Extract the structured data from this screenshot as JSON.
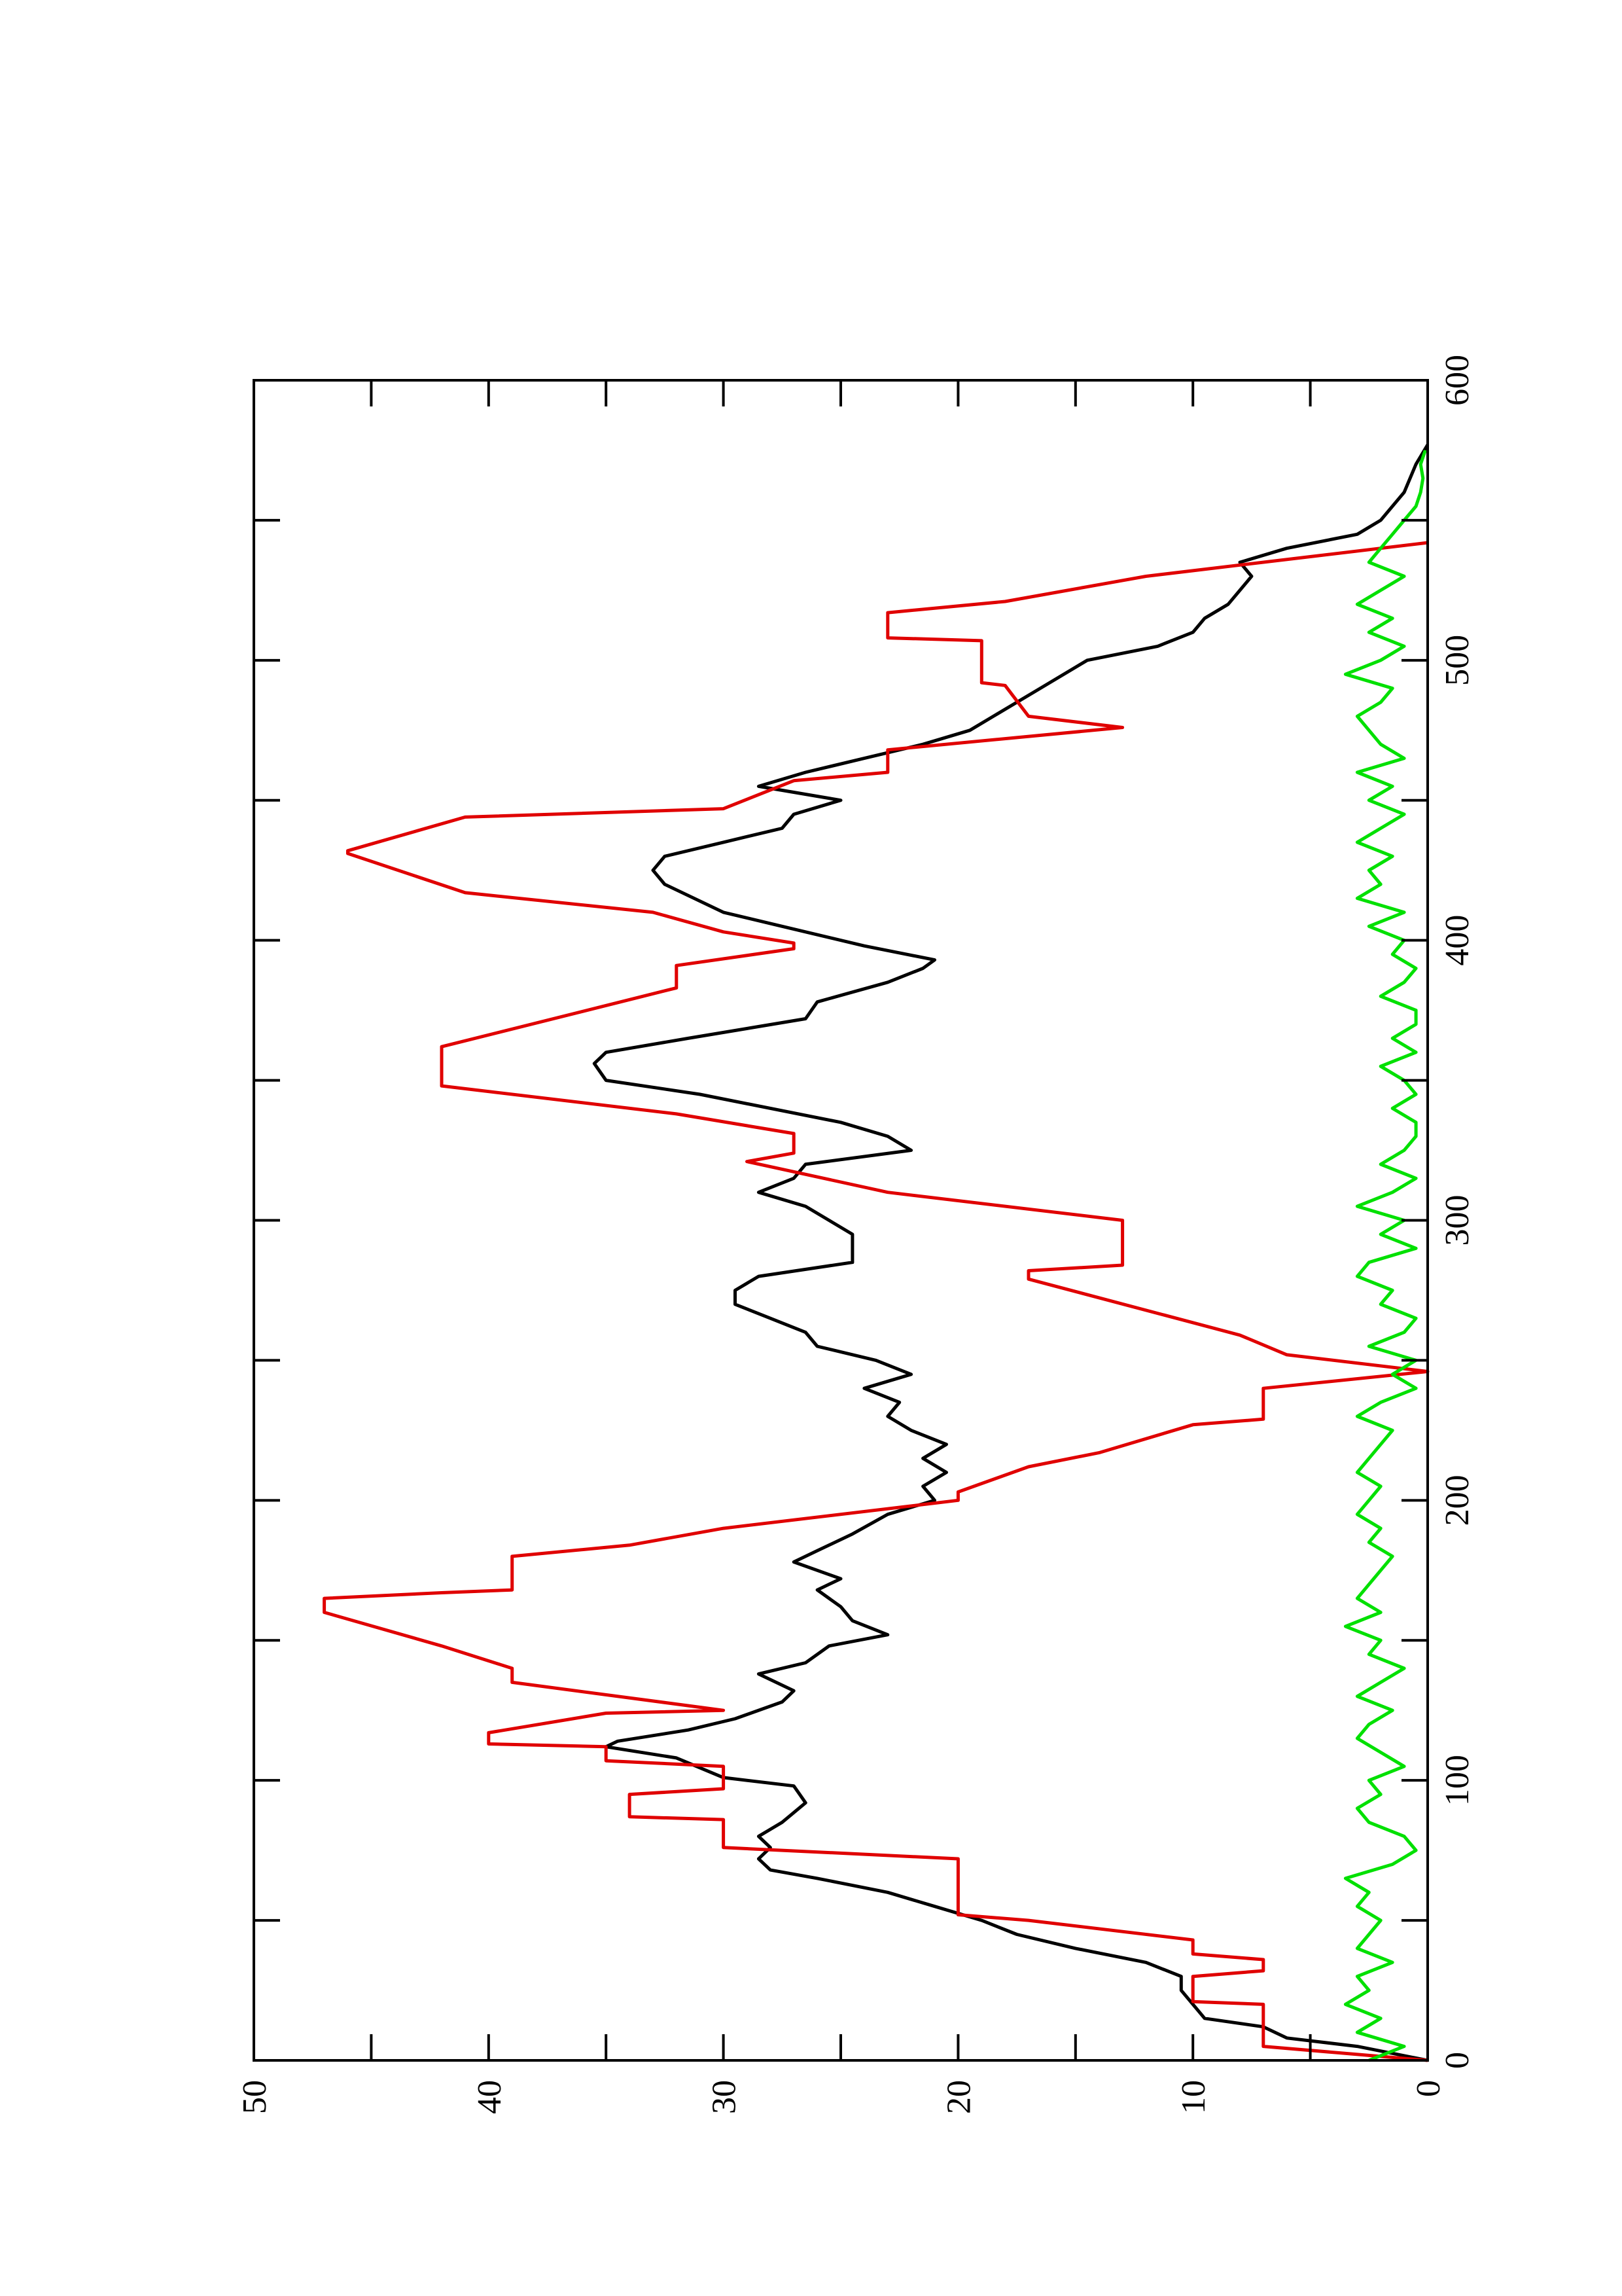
{
  "chart_data": {
    "type": "line",
    "xlim": [
      0,
      600
    ],
    "xticks": [
      0,
      100,
      200,
      300,
      400,
      500,
      600
    ],
    "xminorticks": [
      50,
      150,
      250,
      350,
      450,
      550
    ],
    "ylim": [
      0,
      50
    ],
    "yticks": [
      0,
      10,
      20,
      30,
      40,
      50
    ],
    "yminorticks": [
      5,
      15,
      25,
      35,
      45
    ],
    "series": [
      {
        "color": "#000000",
        "x": [
          0,
          5,
          8,
          12,
          15,
          20,
          25,
          30,
          35,
          40,
          45,
          50,
          55,
          60,
          65,
          68,
          72,
          76,
          80,
          85,
          92,
          98,
          101,
          108,
          112,
          114,
          118,
          122,
          128,
          132,
          138,
          142,
          148,
          152,
          157,
          162,
          168,
          172,
          178,
          182,
          188,
          195,
          200,
          205,
          210,
          215,
          220,
          225,
          230,
          235,
          240,
          245,
          250,
          255,
          260,
          265,
          270,
          275,
          280,
          285,
          290,
          295,
          300,
          305,
          310,
          315,
          320,
          325,
          330,
          335,
          345,
          350,
          356,
          360,
          365,
          372,
          378,
          385,
          390,
          393,
          398,
          405,
          410,
          420,
          425,
          430,
          435,
          440,
          445,
          450,
          455,
          460,
          465,
          470,
          475,
          480,
          490,
          500,
          505,
          510,
          515,
          520,
          525,
          530,
          535,
          540,
          545,
          550,
          560,
          570,
          577
        ],
        "values": [
          0,
          3,
          6,
          7,
          9.5,
          10,
          10.5,
          10.5,
          12,
          15,
          17.5,
          19,
          21,
          23,
          26,
          28,
          28.5,
          28,
          28.5,
          27.5,
          26.5,
          27,
          30,
          32,
          35,
          34.5,
          31.5,
          29.5,
          27.5,
          27,
          28.5,
          26.5,
          25.5,
          23,
          24.5,
          25,
          26,
          25,
          27,
          26,
          24.5,
          23,
          21,
          21.5,
          20.5,
          21.5,
          20.5,
          22,
          23,
          22.5,
          24,
          22,
          23.5,
          26,
          26.5,
          28,
          29.5,
          29.5,
          28.5,
          24.5,
          24.5,
          24.5,
          25.5,
          26.5,
          28.5,
          27,
          26.5,
          22,
          23,
          25,
          31,
          35,
          35.5,
          35,
          31.5,
          26.5,
          26,
          23,
          21.5,
          21,
          24,
          27.5,
          30,
          32.5,
          33,
          32.5,
          30,
          27.5,
          27,
          25,
          28.5,
          26.5,
          24,
          21.5,
          19.5,
          18.5,
          16.5,
          14.5,
          11.5,
          10,
          9.5,
          8.5,
          8,
          7.5,
          8,
          6,
          3,
          2,
          1,
          0.5,
          0
        ]
      },
      {
        "color": "#e00000",
        "x": [
          0,
          5,
          20,
          21,
          30,
          32,
          36,
          38,
          43,
          50,
          52,
          72,
          76,
          86,
          87,
          95,
          97,
          105,
          107,
          112,
          113,
          117,
          124,
          125,
          135,
          140,
          148,
          160,
          165,
          167,
          168,
          180,
          184,
          190,
          200,
          203,
          212,
          217,
          227,
          229,
          240,
          246,
          252,
          259,
          279,
          282,
          284,
          300,
          310,
          321,
          324,
          331,
          338,
          348,
          362,
          383,
          391,
          397,
          399,
          403,
          410,
          417,
          431,
          432,
          444,
          447,
          457,
          460,
          468,
          476,
          480,
          491,
          492,
          507,
          508,
          517,
          521,
          530,
          537,
          542
        ],
        "values": [
          0,
          7,
          7,
          10,
          10,
          7,
          7,
          10,
          10,
          17,
          20,
          20,
          30,
          30,
          34,
          34,
          30,
          30,
          35,
          35,
          40,
          40,
          35,
          30,
          39,
          39,
          42,
          47,
          47,
          42,
          39,
          39,
          34,
          30,
          20,
          20,
          17,
          14,
          10,
          7,
          7,
          0,
          6,
          8,
          17,
          17,
          13,
          13,
          23,
          29,
          27,
          27,
          32,
          42,
          42,
          32,
          32,
          27,
          27,
          30,
          33,
          41,
          46,
          46,
          41,
          30,
          27,
          23,
          23,
          13,
          17,
          18,
          19,
          19,
          23,
          23,
          18,
          12,
          5,
          0
        ]
      },
      {
        "color": "#00e000",
        "x": [
          0,
          5,
          10,
          15,
          20,
          25,
          30,
          35,
          40,
          45,
          50,
          55,
          60,
          65,
          70,
          75,
          80,
          85,
          90,
          95,
          100,
          105,
          110,
          115,
          120,
          125,
          130,
          135,
          140,
          145,
          150,
          155,
          160,
          165,
          170,
          175,
          180,
          185,
          190,
          195,
          200,
          205,
          210,
          215,
          220,
          225,
          230,
          235,
          240,
          245,
          250,
          255,
          260,
          265,
          270,
          275,
          280,
          285,
          290,
          295,
          300,
          305,
          310,
          315,
          320,
          325,
          330,
          335,
          340,
          345,
          350,
          355,
          360,
          365,
          370,
          375,
          380,
          385,
          390,
          395,
          400,
          405,
          410,
          415,
          420,
          425,
          430,
          435,
          440,
          445,
          450,
          455,
          460,
          465,
          470,
          475,
          480,
          485,
          490,
          495,
          500,
          505,
          510,
          515,
          520,
          525,
          530,
          535,
          540,
          545,
          550,
          555,
          560,
          565,
          570,
          575
        ],
        "values": [
          2.5,
          1,
          3,
          2,
          3.5,
          2.5,
          3,
          1.5,
          3,
          2.5,
          2,
          3,
          2.5,
          3.5,
          1.5,
          0.5,
          1,
          2.5,
          3,
          2,
          2.5,
          1,
          2,
          3,
          2.5,
          1.5,
          3,
          2,
          1,
          2.5,
          2,
          3.5,
          2,
          3,
          2.5,
          2,
          1.5,
          2.5,
          2,
          3,
          2.5,
          2,
          3,
          2.5,
          2,
          1.5,
          3,
          2,
          0.5,
          1.5,
          0.5,
          2.5,
          1,
          0.5,
          2,
          1.5,
          3,
          2.5,
          0.5,
          2,
          1,
          3,
          1.5,
          0.5,
          2,
          1,
          0.5,
          0.5,
          1.5,
          0.5,
          1,
          2,
          0.5,
          1.5,
          0.5,
          0.5,
          2,
          1,
          0.5,
          1.5,
          1,
          2.5,
          1,
          3,
          2,
          2.5,
          1.5,
          3,
          2,
          1,
          2.5,
          1.5,
          3,
          1,
          2,
          2.5,
          3,
          2,
          1.5,
          3.5,
          2,
          1,
          2.5,
          1.5,
          3,
          2,
          1,
          2.5,
          2,
          1.5,
          1,
          0.5,
          0.3,
          0.2,
          0.3,
          0.1
        ]
      }
    ]
  }
}
